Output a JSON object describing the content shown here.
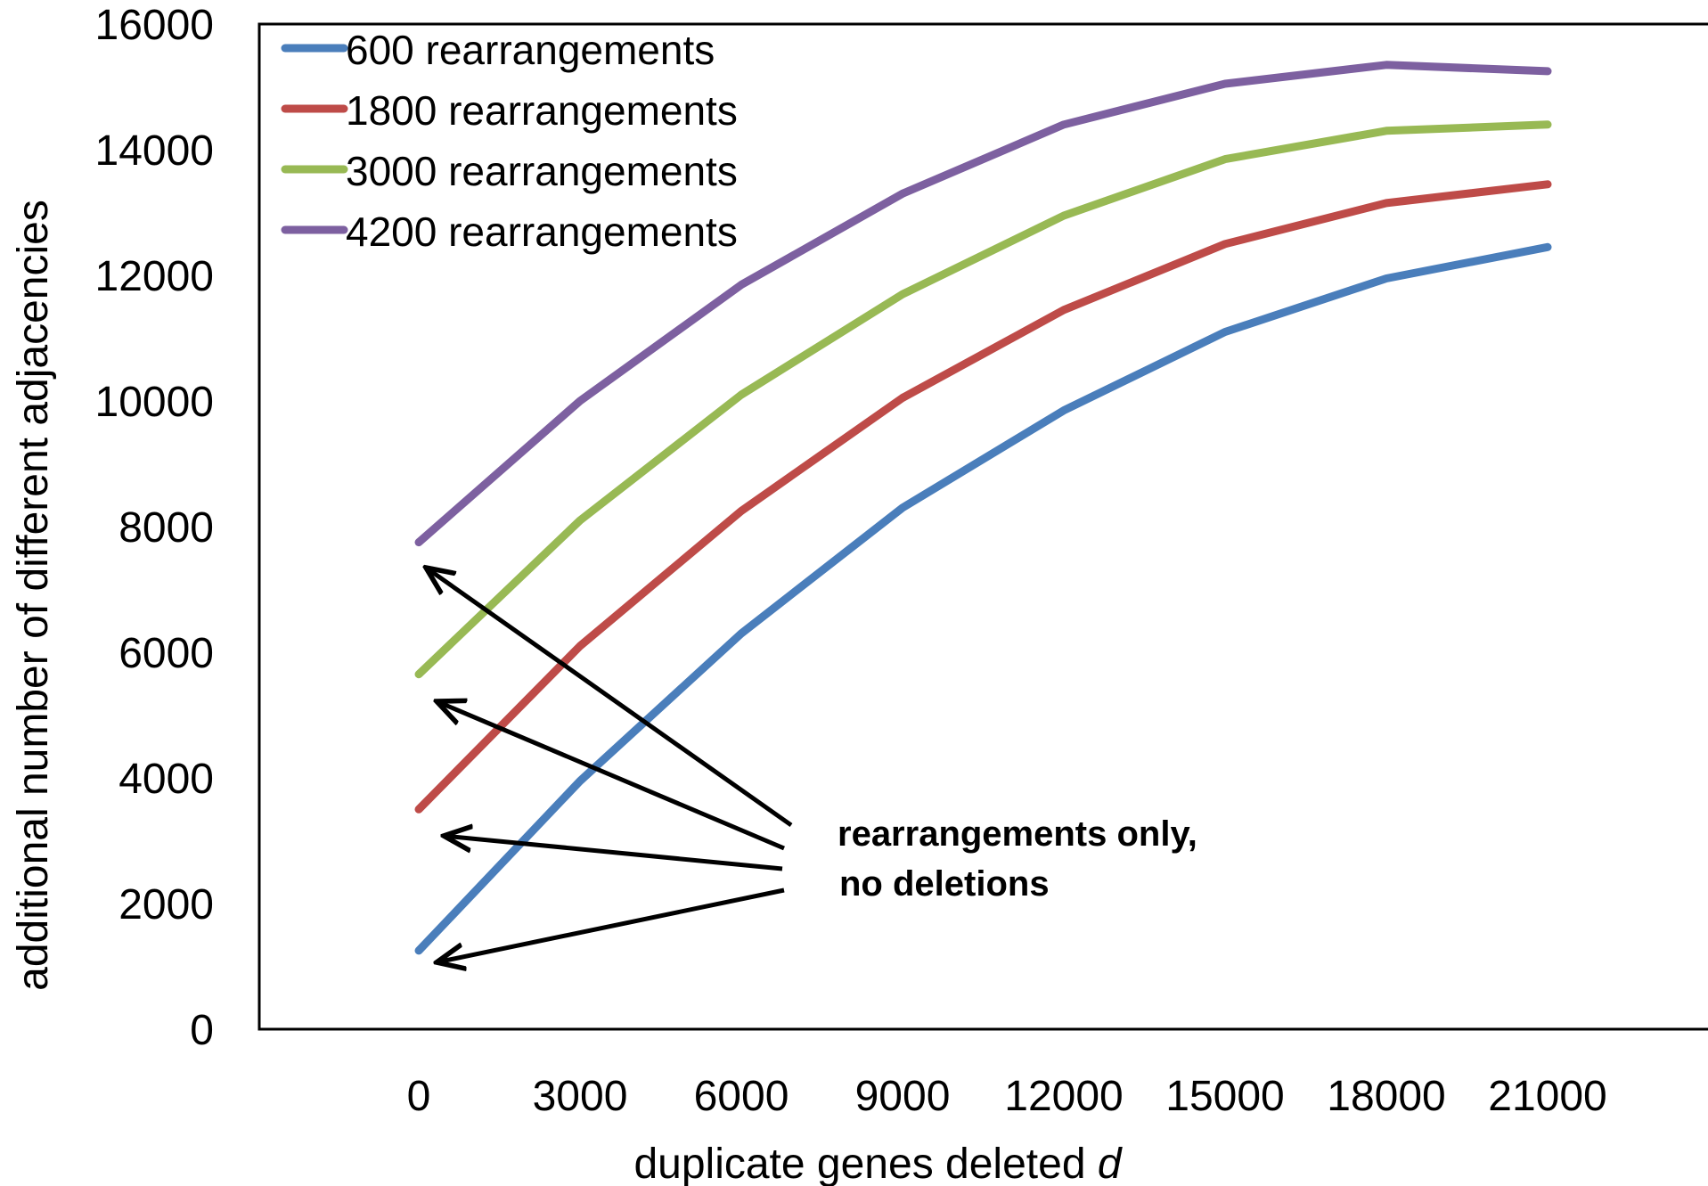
{
  "chart_data": {
    "type": "line",
    "x": [
      0,
      3000,
      6000,
      9000,
      12000,
      15000,
      18000,
      21000
    ],
    "series": [
      {
        "name": "600 rearrangements",
        "color": "#4a7ebb",
        "values": [
          1250,
          3950,
          6300,
          8300,
          9850,
          11100,
          11950,
          12450
        ]
      },
      {
        "name": "1800 rearrangements",
        "color": "#be4b48",
        "values": [
          3500,
          6100,
          8250,
          10050,
          11450,
          12500,
          13150,
          13450
        ]
      },
      {
        "name": "3000 rearrangements",
        "color": "#98b954",
        "values": [
          5650,
          8100,
          10100,
          11700,
          12950,
          13850,
          14300,
          14400
        ]
      },
      {
        "name": "4200 rearrangements",
        "color": "#7d60a0",
        "values": [
          7750,
          10000,
          11850,
          13300,
          14400,
          15050,
          15350,
          15250
        ]
      }
    ],
    "xticks": [
      "0",
      "3000",
      "6000",
      "9000",
      "12000",
      "15000",
      "18000",
      "21000"
    ],
    "yticks": [
      "0",
      "2000",
      "4000",
      "6000",
      "8000",
      "10000",
      "12000",
      "14000",
      "16000"
    ],
    "xlabel": "duplicate genes deleted",
    "xlabel_var": "d",
    "ylabel": "additional number of different adjacencies",
    "ylim": [
      0,
      16000
    ],
    "grid": false,
    "legend_position": "top-left",
    "annotation": {
      "line1": "rearrangements only,",
      "line2": "no deletions"
    }
  }
}
